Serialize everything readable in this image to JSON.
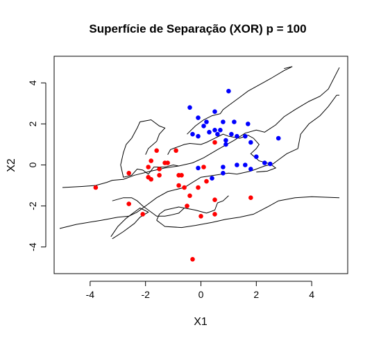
{
  "chart_data": {
    "type": "scatter",
    "title": "Superfície de Separação (XOR) p = 100",
    "xlabel": "X1",
    "ylabel": "X2",
    "xlim": [
      -5.3,
      5.3
    ],
    "ylim": [
      -5.3,
      5.3
    ],
    "x_ticks": [
      "-4",
      "-2",
      "0",
      "2",
      "4"
    ],
    "y_ticks": [
      "-4",
      "-2",
      "0",
      "2",
      "4"
    ],
    "grid": false,
    "legend": "none",
    "colors": {
      "class_blue": "#0000ff",
      "class_red": "#ff0000",
      "boundary": "#000000"
    },
    "series": [
      {
        "color": "#0000ff",
        "points": [
          [
            -0.4,
            2.8
          ],
          [
            0.5,
            2.6
          ],
          [
            1.0,
            3.6
          ],
          [
            -0.1,
            2.3
          ],
          [
            0.2,
            2.1
          ],
          [
            0.8,
            2.1
          ],
          [
            0.1,
            1.9
          ],
          [
            -0.3,
            1.5
          ],
          [
            -0.1,
            1.4
          ],
          [
            0.3,
            1.6
          ],
          [
            0.5,
            1.7
          ],
          [
            0.6,
            1.5
          ],
          [
            0.7,
            1.7
          ],
          [
            0.9,
            1.2
          ],
          [
            1.1,
            1.5
          ],
          [
            1.2,
            2.1
          ],
          [
            1.3,
            1.4
          ],
          [
            1.6,
            1.4
          ],
          [
            1.7,
            2.0
          ],
          [
            1.8,
            1.1
          ],
          [
            2.8,
            1.3
          ],
          [
            0.9,
            1.0
          ],
          [
            2.0,
            0.4
          ],
          [
            1.3,
            0.0
          ],
          [
            1.6,
            0.0
          ],
          [
            0.8,
            -0.1
          ],
          [
            1.8,
            -0.2
          ],
          [
            2.3,
            0.1
          ],
          [
            2.5,
            0.05
          ],
          [
            -0.1,
            -0.15
          ],
          [
            0.8,
            -0.4
          ],
          [
            0.4,
            -0.65
          ]
        ]
      },
      {
        "color": "#ff0000",
        "points": [
          [
            -3.8,
            -1.1
          ],
          [
            -2.6,
            -0.4
          ],
          [
            -2.6,
            -1.9
          ],
          [
            -2.1,
            -2.4
          ],
          [
            -1.6,
            0.7
          ],
          [
            -1.3,
            0.1
          ],
          [
            -1.2,
            0.1
          ],
          [
            -1.5,
            -0.2
          ],
          [
            -1.9,
            -0.1
          ],
          [
            -1.8,
            0.2
          ],
          [
            -1.9,
            -0.6
          ],
          [
            -1.8,
            -0.7
          ],
          [
            -1.5,
            -0.5
          ],
          [
            -0.9,
            0.7
          ],
          [
            -0.8,
            -0.5
          ],
          [
            -0.7,
            -0.5
          ],
          [
            -0.8,
            -1.0
          ],
          [
            -0.6,
            -1.1
          ],
          [
            -0.4,
            -1.5
          ],
          [
            -0.5,
            -2.0
          ],
          [
            -0.1,
            -1.1
          ],
          [
            0.2,
            -0.8
          ],
          [
            0.1,
            -0.1
          ],
          [
            0.5,
            -1.7
          ],
          [
            0.5,
            1.1
          ],
          [
            0.5,
            -2.4
          ],
          [
            0.0,
            -2.5
          ],
          [
            1.8,
            -1.6
          ],
          [
            -0.3,
            -4.6
          ]
        ]
      }
    ],
    "decision_boundary": [
      [
        [
          -5.1,
          -3.1
        ],
        [
          -4.5,
          -2.9
        ],
        [
          -3.6,
          -2.7
        ],
        [
          -3.0,
          -2.55
        ],
        [
          -2.6,
          -2.5
        ],
        [
          -2.3,
          -2.3
        ],
        [
          -2.0,
          -2.0
        ],
        [
          -1.6,
          -1.6
        ],
        [
          -1.2,
          -1.3
        ],
        [
          -0.9,
          -1.2
        ],
        [
          -0.6,
          -1.1
        ],
        [
          -0.3,
          -0.85
        ],
        [
          0.0,
          -0.6
        ],
        [
          0.5,
          -0.5
        ],
        [
          1.0,
          -0.4
        ],
        [
          1.3,
          -0.45
        ],
        [
          1.8,
          -0.3
        ],
        [
          2.3,
          -0.05
        ],
        [
          2.6,
          0.05
        ],
        [
          2.8,
          0.25
        ],
        [
          3.1,
          0.55
        ],
        [
          3.5,
          0.8
        ],
        [
          3.6,
          1.5
        ],
        [
          3.9,
          2.0
        ],
        [
          4.3,
          2.4
        ],
        [
          4.6,
          2.85
        ],
        [
          4.9,
          3.4
        ],
        [
          5.0,
          3.4
        ]
      ],
      [
        [
          -5.0,
          -1.1
        ],
        [
          -4.3,
          -1.05
        ],
        [
          -3.8,
          -1.0
        ],
        [
          -3.4,
          -0.85
        ],
        [
          -3.2,
          -0.75
        ],
        [
          -2.8,
          -0.7
        ],
        [
          -2.4,
          -0.5
        ],
        [
          -1.8,
          -0.3
        ],
        [
          -1.3,
          -0.15
        ],
        [
          -0.8,
          -0.05
        ],
        [
          -0.3,
          0.1
        ],
        [
          0.1,
          0.35
        ],
        [
          0.6,
          0.75
        ],
        [
          1.2,
          1.2
        ],
        [
          1.6,
          1.55
        ],
        [
          2.0,
          1.7
        ],
        [
          2.3,
          1.6
        ],
        [
          2.7,
          1.95
        ],
        [
          3.0,
          2.35
        ],
        [
          3.4,
          2.7
        ],
        [
          3.9,
          3.1
        ],
        [
          4.3,
          3.35
        ],
        [
          4.6,
          3.7
        ],
        [
          5.0,
          4.75
        ]
      ],
      [
        [
          -0.5,
          1.5
        ],
        [
          -0.2,
          1.9
        ],
        [
          0.1,
          2.2
        ],
        [
          0.4,
          2.4
        ],
        [
          0.7,
          2.5
        ],
        [
          0.8,
          2.7
        ],
        [
          1.0,
          2.9
        ],
        [
          1.2,
          3.1
        ],
        [
          1.4,
          3.3
        ],
        [
          1.7,
          3.6
        ],
        [
          2.1,
          3.9
        ],
        [
          2.5,
          4.2
        ],
        [
          3.0,
          4.6
        ],
        [
          3.3,
          4.8
        ],
        [
          3.0,
          4.7
        ]
      ],
      [
        [
          -2.5,
          1.3
        ],
        [
          -2.7,
          1.0
        ],
        [
          -2.8,
          0.6
        ],
        [
          -2.9,
          0.0
        ],
        [
          -2.8,
          -0.6
        ],
        [
          -2.5,
          -0.5
        ],
        [
          -2.3,
          -0.2
        ],
        [
          -2.1,
          -0.25
        ],
        [
          -1.9,
          -0.45
        ],
        [
          -1.7,
          -0.1
        ],
        [
          -1.3,
          -0.1
        ],
        [
          -1.0,
          0.0
        ],
        [
          -0.8,
          -0.05
        ]
      ],
      [
        [
          -2.5,
          1.3
        ],
        [
          -2.3,
          1.8
        ],
        [
          -2.2,
          2.1
        ],
        [
          -1.8,
          2.2
        ],
        [
          -1.5,
          1.9
        ],
        [
          -1.3,
          1.8
        ],
        [
          -1.5,
          1.5
        ],
        [
          -1.6,
          1.15
        ],
        [
          -1.9,
          0.8
        ],
        [
          -2.0,
          0.5
        ]
      ],
      [
        [
          -1.2,
          0.5
        ],
        [
          -1.1,
          0.75
        ],
        [
          -0.9,
          0.85
        ],
        [
          -0.6,
          1.0
        ],
        [
          -0.4,
          1.05
        ],
        [
          0.0,
          1.0
        ],
        [
          0.2,
          1.1
        ],
        [
          0.5,
          1.3
        ],
        [
          0.8,
          1.5
        ],
        [
          1.0,
          1.4
        ],
        [
          1.4,
          1.3
        ],
        [
          1.7,
          1.45
        ],
        [
          1.9,
          1.3
        ],
        [
          2.1,
          1.0
        ],
        [
          2.0,
          0.8
        ],
        [
          1.8,
          0.55
        ],
        [
          2.1,
          0.2
        ],
        [
          2.5,
          0.05
        ],
        [
          2.7,
          -0.15
        ],
        [
          2.4,
          -0.3
        ],
        [
          2.0,
          -0.35
        ]
      ],
      [
        [
          -3.2,
          -1.75
        ],
        [
          -2.8,
          -1.6
        ],
        [
          -2.5,
          -1.6
        ],
        [
          -2.3,
          -1.75
        ],
        [
          -2.1,
          -2.0
        ],
        [
          -1.8,
          -2.3
        ],
        [
          -1.6,
          -2.5
        ],
        [
          -1.3,
          -2.5
        ],
        [
          -1.1,
          -2.45
        ],
        [
          -0.8,
          -2.35
        ],
        [
          -0.6,
          -2.1
        ]
      ],
      [
        [
          -3.2,
          -3.6
        ],
        [
          -2.8,
          -3.25
        ],
        [
          -2.4,
          -2.85
        ],
        [
          -2.2,
          -2.55
        ],
        [
          -1.9,
          -2.3
        ],
        [
          -2.2,
          -2.1
        ],
        [
          -2.4,
          -2.3
        ],
        [
          -2.7,
          -2.6
        ],
        [
          -3.0,
          -3.0
        ],
        [
          -3.25,
          -3.5
        ]
      ],
      [
        [
          -1.6,
          -2.7
        ],
        [
          -1.4,
          -2.9
        ],
        [
          -1.3,
          -3.0
        ],
        [
          -0.7,
          -3.05
        ],
        [
          -0.2,
          -2.95
        ],
        [
          0.4,
          -2.8
        ],
        [
          0.9,
          -2.65
        ],
        [
          1.4,
          -2.55
        ],
        [
          1.9,
          -2.4
        ],
        [
          2.4,
          -2.05
        ],
        [
          2.8,
          -1.75
        ],
        [
          3.4,
          -1.6
        ],
        [
          4.0,
          -1.55
        ],
        [
          5.0,
          -1.6
        ]
      ],
      [
        [
          -1.6,
          -2.7
        ],
        [
          -1.5,
          -2.4
        ],
        [
          -1.3,
          -2.2
        ],
        [
          -0.8,
          -2.05
        ],
        [
          -0.2,
          -2.2
        ],
        [
          0.2,
          -2.35
        ],
        [
          0.5,
          -2.2
        ],
        [
          0.6,
          -1.85
        ],
        [
          0.8,
          -1.75
        ],
        [
          1.0,
          -1.5
        ]
      ]
    ]
  }
}
